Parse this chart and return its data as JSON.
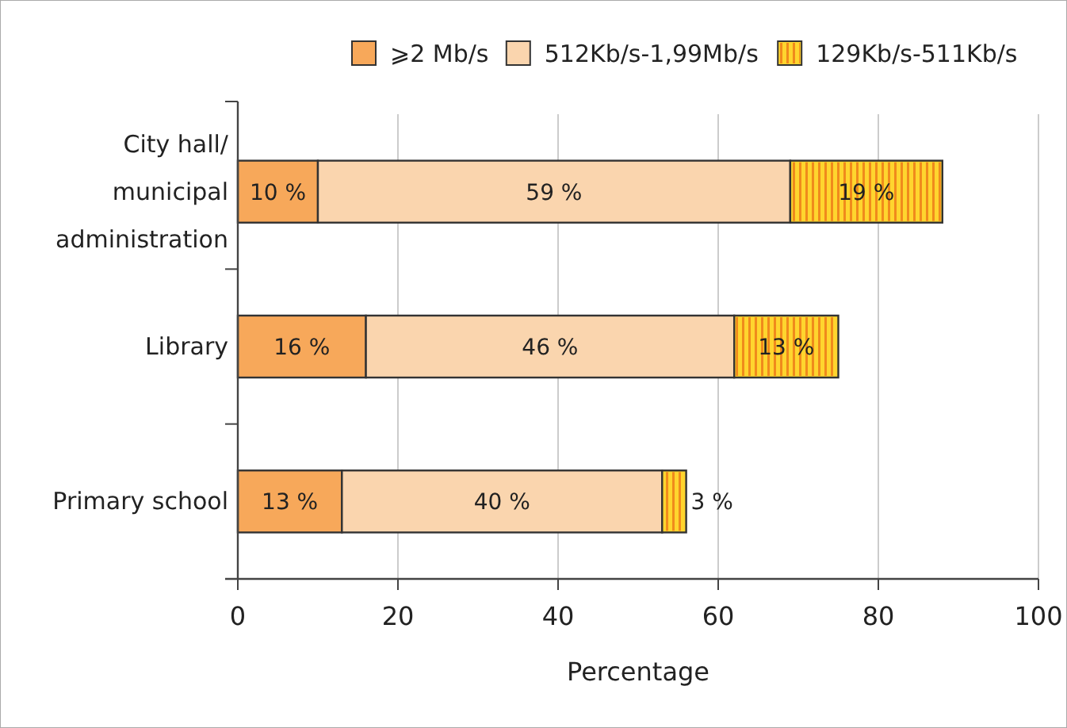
{
  "chart_data": {
    "type": "bar",
    "orientation": "horizontal",
    "stacked": true,
    "xlabel": "Percentage",
    "categories": [
      "City hall/ municipal administration",
      "Library",
      "Primary school"
    ],
    "series": [
      {
        "name": "⩾2 Mb/s",
        "color": "#f7a85a",
        "values": [
          10,
          16,
          13
        ],
        "value_labels": [
          "10 %",
          "16 %",
          "13 %"
        ]
      },
      {
        "name": "512Kb/s-1,99Mb/s",
        "color": "#fad5ae",
        "values": [
          59,
          46,
          40
        ],
        "value_labels": [
          "59 %",
          "46 %",
          "40 %"
        ]
      },
      {
        "name": "129Kb/s-511Kb/s",
        "color": "#ffd52e",
        "values": [
          19,
          13,
          3
        ],
        "value_labels": [
          "19 %",
          "13 %",
          "3 %"
        ]
      }
    ],
    "xlim": [
      0,
      100
    ],
    "xticks": [
      0,
      20,
      40,
      60,
      80,
      100
    ],
    "grid": "x",
    "legend": "top"
  }
}
